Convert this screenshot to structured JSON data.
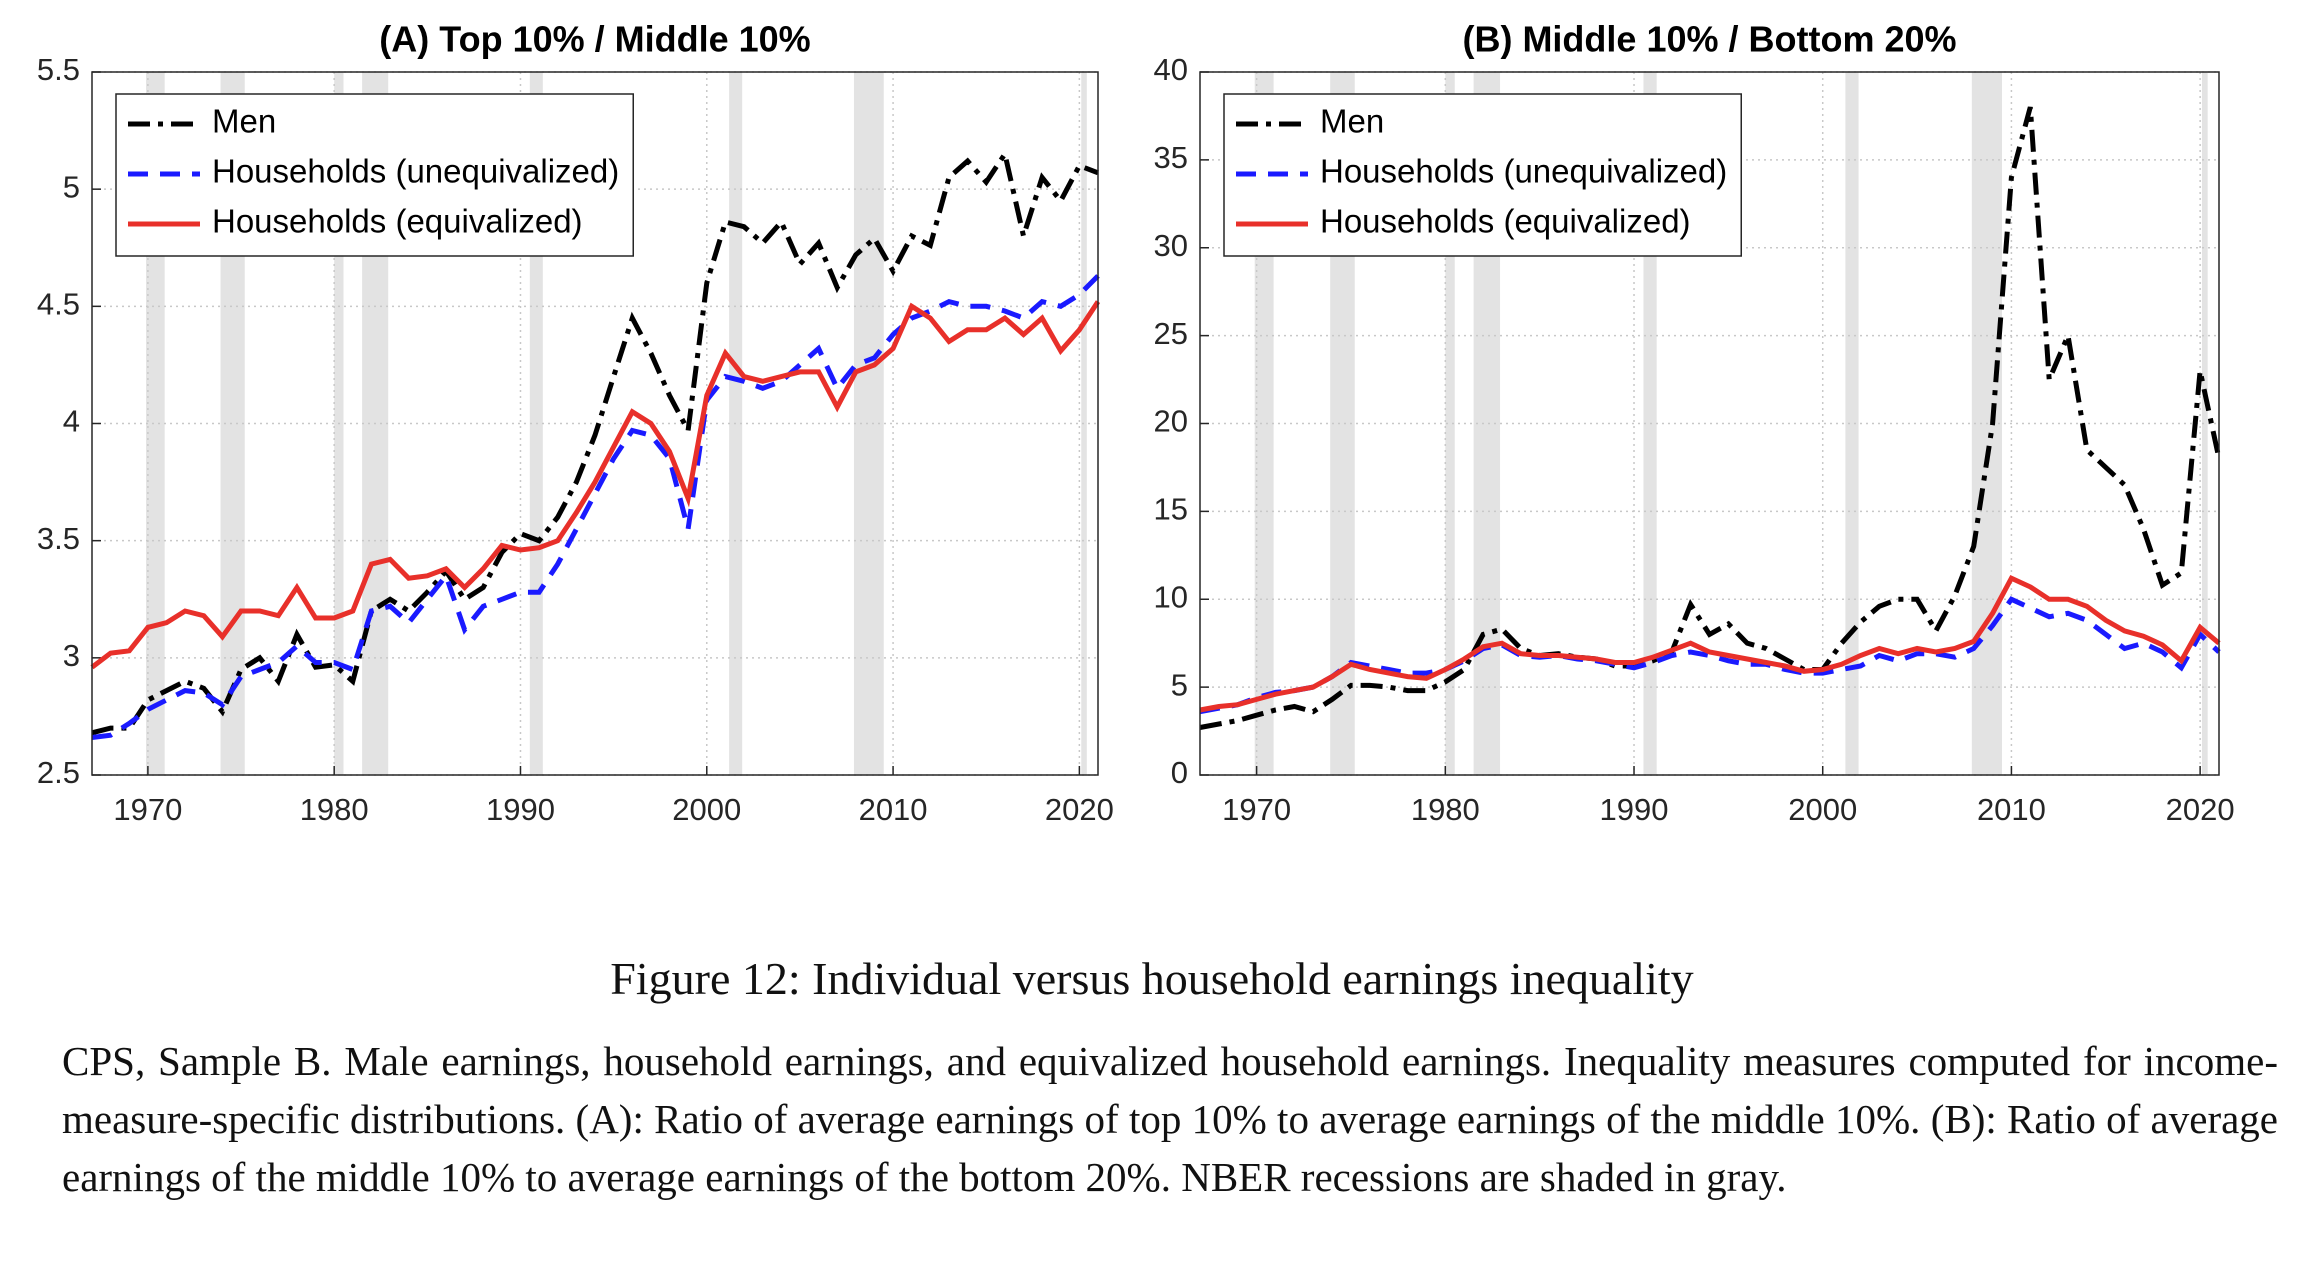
{
  "chart_data": [
    {
      "type": "line",
      "title": "(A) Top 10% / Middle 10%",
      "x": [
        1967,
        1968,
        1969,
        1970,
        1971,
        1972,
        1973,
        1974,
        1975,
        1976,
        1977,
        1978,
        1979,
        1980,
        1981,
        1982,
        1983,
        1984,
        1985,
        1986,
        1987,
        1988,
        1989,
        1990,
        1991,
        1992,
        1993,
        1994,
        1995,
        1996,
        1997,
        1998,
        1999,
        2000,
        2001,
        2002,
        2003,
        2004,
        2005,
        2006,
        2007,
        2008,
        2009,
        2010,
        2011,
        2012,
        2013,
        2014,
        2015,
        2016,
        2017,
        2018,
        2019,
        2020,
        2021
      ],
      "series": [
        {
          "name": "Men",
          "color": "#000000",
          "style": "dashdot",
          "values": [
            2.68,
            2.7,
            2.7,
            2.82,
            2.86,
            2.9,
            2.87,
            2.77,
            2.95,
            3.0,
            2.9,
            3.1,
            2.96,
            2.97,
            2.9,
            3.2,
            3.25,
            3.2,
            3.28,
            3.37,
            3.25,
            3.3,
            3.45,
            3.53,
            3.5,
            3.6,
            3.75,
            3.95,
            4.2,
            4.45,
            4.3,
            4.12,
            3.97,
            4.6,
            4.86,
            4.84,
            4.77,
            4.86,
            4.68,
            4.77,
            4.58,
            4.72,
            4.79,
            4.65,
            4.8,
            4.76,
            5.05,
            5.12,
            5.03,
            5.15,
            4.8,
            5.05,
            4.95,
            5.1,
            5.07
          ]
        },
        {
          "name": "Households (unequivalized)",
          "color": "#1a1aff",
          "style": "dashed",
          "values": [
            2.66,
            2.67,
            2.72,
            2.78,
            2.82,
            2.86,
            2.85,
            2.8,
            2.92,
            2.95,
            2.98,
            3.05,
            2.98,
            2.98,
            2.95,
            3.2,
            3.22,
            3.15,
            3.25,
            3.35,
            3.12,
            3.22,
            3.25,
            3.28,
            3.28,
            3.4,
            3.55,
            3.7,
            3.85,
            3.97,
            3.95,
            3.85,
            3.55,
            4.1,
            4.2,
            4.18,
            4.15,
            4.18,
            4.25,
            4.32,
            4.15,
            4.25,
            4.28,
            4.38,
            4.45,
            4.48,
            4.52,
            4.5,
            4.5,
            4.48,
            4.45,
            4.52,
            4.5,
            4.55,
            4.63
          ]
        },
        {
          "name": "Households (equivalized)",
          "color": "#e8302a",
          "style": "solid",
          "values": [
            2.96,
            3.02,
            3.03,
            3.13,
            3.15,
            3.2,
            3.18,
            3.09,
            3.2,
            3.2,
            3.18,
            3.3,
            3.17,
            3.17,
            3.2,
            3.4,
            3.42,
            3.34,
            3.35,
            3.38,
            3.3,
            3.38,
            3.48,
            3.46,
            3.47,
            3.5,
            3.62,
            3.75,
            3.9,
            4.05,
            4.0,
            3.88,
            3.68,
            4.12,
            4.3,
            4.2,
            4.18,
            4.2,
            4.22,
            4.22,
            4.07,
            4.22,
            4.25,
            4.32,
            4.5,
            4.45,
            4.35,
            4.4,
            4.4,
            4.45,
            4.38,
            4.45,
            4.31,
            4.4,
            4.52
          ]
        }
      ],
      "recessions": [
        [
          1969.9,
          1970.9
        ],
        [
          1973.9,
          1975.2
        ],
        [
          1980.0,
          1980.5
        ],
        [
          1981.5,
          1982.9
        ],
        [
          1990.5,
          1991.2
        ],
        [
          2001.2,
          2001.9
        ],
        [
          2007.9,
          2009.5
        ],
        [
          2020.1,
          2020.4
        ]
      ],
      "xlim": [
        1967,
        2021
      ],
      "xticks": [
        1970,
        1980,
        1990,
        2000,
        2010,
        2020
      ],
      "ylim": [
        2.5,
        5.5
      ],
      "yticks": [
        2.5,
        3,
        3.5,
        4,
        4.5,
        5,
        5.5
      ],
      "grid": true,
      "legend": "upper left"
    },
    {
      "type": "line",
      "title": "(B) Middle 10% / Bottom 20%",
      "x": [
        1967,
        1968,
        1969,
        1970,
        1971,
        1972,
        1973,
        1974,
        1975,
        1976,
        1977,
        1978,
        1979,
        1980,
        1981,
        1982,
        1983,
        1984,
        1985,
        1986,
        1987,
        1988,
        1989,
        1990,
        1991,
        1992,
        1993,
        1994,
        1995,
        1996,
        1997,
        1998,
        1999,
        2000,
        2001,
        2002,
        2003,
        2004,
        2005,
        2006,
        2007,
        2008,
        2009,
        2010,
        2011,
        2012,
        2013,
        2014,
        2015,
        2016,
        2017,
        2018,
        2019,
        2020,
        2021
      ],
      "series": [
        {
          "name": "Men",
          "color": "#000000",
          "style": "dashdot",
          "values": [
            2.7,
            2.9,
            3.1,
            3.4,
            3.7,
            3.9,
            3.6,
            4.3,
            5.1,
            5.1,
            5.0,
            4.8,
            4.8,
            5.3,
            6.0,
            8.0,
            8.3,
            7.2,
            6.8,
            6.9,
            6.7,
            6.6,
            6.2,
            6.2,
            6.5,
            7.0,
            9.7,
            8.0,
            8.6,
            7.5,
            7.2,
            6.6,
            6.0,
            6.0,
            7.5,
            8.7,
            9.6,
            10.0,
            10.0,
            8.2,
            10.2,
            13.0,
            20.0,
            34.0,
            38.0,
            22.5,
            25.0,
            18.5,
            17.5,
            16.5,
            14.0,
            10.8,
            11.5,
            23.0,
            18.0
          ]
        },
        {
          "name": "Households (unequivalized)",
          "color": "#1a1aff",
          "style": "dashed",
          "values": [
            3.6,
            3.8,
            4.0,
            4.4,
            4.7,
            4.8,
            5.0,
            5.6,
            6.4,
            6.2,
            6.0,
            5.8,
            5.8,
            6.0,
            6.5,
            7.2,
            7.4,
            6.8,
            6.7,
            6.8,
            6.6,
            6.5,
            6.3,
            6.1,
            6.4,
            6.8,
            7.0,
            6.8,
            6.5,
            6.3,
            6.3,
            6.0,
            5.8,
            5.8,
            6.0,
            6.2,
            6.8,
            6.5,
            6.9,
            6.9,
            6.7,
            7.2,
            8.5,
            10.0,
            9.5,
            9.0,
            9.2,
            8.8,
            8.0,
            7.2,
            7.5,
            7.0,
            6.1,
            8.0,
            7.0
          ]
        },
        {
          "name": "Households (equivalized)",
          "color": "#e8302a",
          "style": "solid",
          "values": [
            3.7,
            3.9,
            4.0,
            4.3,
            4.6,
            4.8,
            5.0,
            5.6,
            6.3,
            6.0,
            5.8,
            5.6,
            5.5,
            6.0,
            6.6,
            7.3,
            7.5,
            6.9,
            6.8,
            6.8,
            6.7,
            6.6,
            6.4,
            6.4,
            6.7,
            7.1,
            7.5,
            7.0,
            6.8,
            6.6,
            6.4,
            6.2,
            5.9,
            6.0,
            6.3,
            6.8,
            7.2,
            6.9,
            7.2,
            7.0,
            7.2,
            7.6,
            9.2,
            11.2,
            10.7,
            10.0,
            10.0,
            9.6,
            8.8,
            8.2,
            7.9,
            7.4,
            6.5,
            8.4,
            7.5
          ]
        }
      ],
      "recessions": [
        [
          1969.9,
          1970.9
        ],
        [
          1973.9,
          1975.2
        ],
        [
          1980.0,
          1980.5
        ],
        [
          1981.5,
          1982.9
        ],
        [
          1990.5,
          1991.2
        ],
        [
          2001.2,
          2001.9
        ],
        [
          2007.9,
          2009.5
        ],
        [
          2020.1,
          2020.4
        ]
      ],
      "xlim": [
        1967,
        2021
      ],
      "xticks": [
        1970,
        1980,
        1990,
        2000,
        2010,
        2020
      ],
      "ylim": [
        0,
        40
      ],
      "yticks": [
        0,
        5,
        10,
        15,
        20,
        25,
        30,
        35,
        40
      ],
      "grid": true,
      "legend": "upper left"
    }
  ],
  "caption": {
    "title": "Figure 12: Individual versus household earnings inequality",
    "text": "CPS, Sample B. Male earnings, household earnings, and equivalized household earnings. Inequality measures computed for income-measure-specific distributions. (A): Ratio of average earnings of top 10% to average earnings of the middle 10%. (B): Ratio of average earnings of the middle 10% to average earnings of the bottom 20%. NBER recessions are shaded in gray."
  }
}
